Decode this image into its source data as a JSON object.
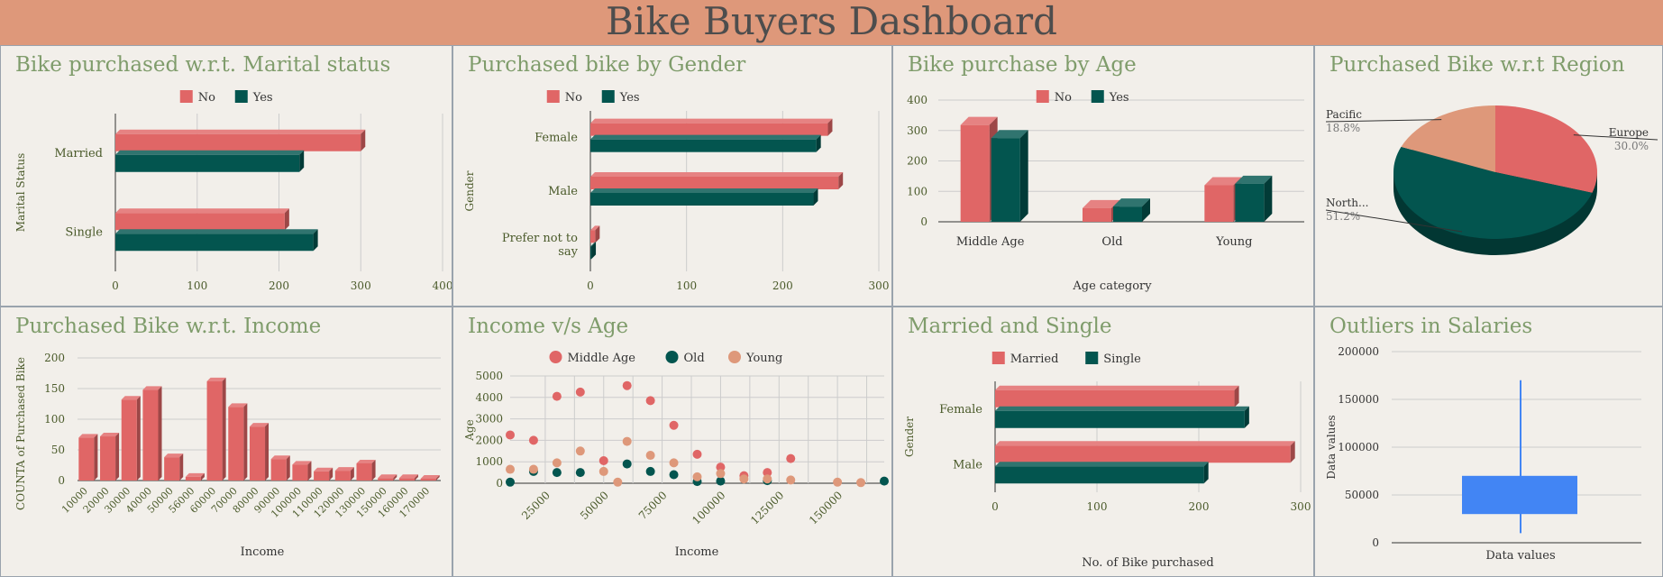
{
  "dashboard_title": "Bike Buyers Dashboard",
  "colors": {
    "red": "#e06666",
    "teal": "#03554f",
    "peach": "#de987a",
    "blue": "#4285f4",
    "title": "#7f9c6b",
    "axis": "#4a5a2a"
  },
  "chart_data": [
    {
      "id": "marital",
      "type": "bar",
      "orientation": "horizontal",
      "title": "Bike purchased w.r.t. Marital status",
      "ylabel": "Marital Status",
      "xlabel": "",
      "categories": [
        "Married",
        "Single"
      ],
      "series": [
        {
          "name": "No",
          "values": [
            300,
            207
          ]
        },
        {
          "name": "Yes",
          "values": [
            225,
            242
          ]
        }
      ],
      "xlim": [
        0,
        400
      ],
      "ticks": [
        0,
        100,
        200,
        300,
        400
      ],
      "tick_labels": [
        "0",
        "100",
        "200",
        "300",
        "400"
      ],
      "legend": "top",
      "grid": true
    },
    {
      "id": "gender",
      "type": "bar",
      "orientation": "horizontal",
      "title": "Purchased bike by Gender",
      "ylabel": "Gender",
      "xlabel": "",
      "categories": [
        "Female",
        "Male",
        "Prefer not to say"
      ],
      "series": [
        {
          "name": "No",
          "values": [
            247,
            258,
            5
          ]
        },
        {
          "name": "Yes",
          "values": [
            235,
            232,
            1
          ]
        }
      ],
      "xlim": [
        0,
        300
      ],
      "ticks": [
        0,
        100,
        200,
        300
      ],
      "tick_labels": [
        "0",
        "100",
        "200",
        "300"
      ],
      "legend": "top",
      "grid": true
    },
    {
      "id": "age",
      "type": "bar",
      "orientation": "vertical",
      "title": "Bike purchase by Age",
      "xlabel": "Age category",
      "ylabel": "",
      "categories": [
        "Middle Age",
        "Old",
        "Young"
      ],
      "series": [
        {
          "name": "No",
          "values": [
            318,
            45,
            120
          ]
        },
        {
          "name": "Yes",
          "values": [
            275,
            50,
            125
          ]
        }
      ],
      "ylim": [
        0,
        400
      ],
      "ticks": [
        0,
        100,
        200,
        300,
        400
      ],
      "tick_labels": [
        "0",
        "100",
        "200",
        "300",
        "400"
      ],
      "legend": "top",
      "grid": true
    },
    {
      "id": "region",
      "type": "pie",
      "title": "Purchased Bike w.r.t Region",
      "slices": [
        {
          "name": "Europe",
          "label": "Europe",
          "pct_label": "30.0%",
          "value": 30.0,
          "color": "#e06666"
        },
        {
          "name": "North America",
          "label": "North...",
          "pct_label": "51.2%",
          "value": 51.2,
          "color": "#03554f"
        },
        {
          "name": "Pacific",
          "label": "Pacific",
          "pct_label": "18.8%",
          "value": 18.8,
          "color": "#de987a"
        }
      ]
    },
    {
      "id": "income",
      "type": "bar",
      "orientation": "vertical",
      "title": "Purchased Bike w.r.t. Income",
      "xlabel": "Income",
      "ylabel": "COUNTA of Purchased Bike",
      "categories": [
        "10000",
        "20000",
        "30000",
        "40000",
        "50000",
        "56000",
        "60000",
        "70000",
        "80000",
        "90000",
        "100000",
        "110000",
        "120000",
        "130000",
        "150000",
        "160000",
        "170000"
      ],
      "series": [
        {
          "name": "COUNTA of Purchased Bike",
          "values": [
            70,
            72,
            132,
            148,
            38,
            6,
            162,
            120,
            88,
            35,
            26,
            15,
            16,
            28,
            4,
            4,
            3
          ]
        }
      ],
      "ylim": [
        0,
        200
      ],
      "ticks": [
        0,
        50,
        100,
        150,
        200
      ],
      "tick_labels": [
        "0",
        "50",
        "100",
        "150",
        "200"
      ],
      "grid": true
    },
    {
      "id": "incomeage",
      "type": "scatter",
      "title": "Income v/s Age",
      "xlabel": "Income",
      "ylabel": "Age",
      "xlim": [
        10000,
        170000
      ],
      "ylim": [
        0,
        5000
      ],
      "xticks": [
        25000,
        50000,
        75000,
        100000,
        125000,
        150000
      ],
      "xtick_labels": [
        "25000",
        "50000",
        "75000",
        "100000",
        "125000",
        "150000"
      ],
      "yticks": [
        0,
        1000,
        2000,
        3000,
        4000,
        5000
      ],
      "ytick_labels": [
        "0",
        "1000",
        "2000",
        "3000",
        "4000",
        "5000"
      ],
      "legend": "top",
      "grid": true,
      "series": [
        {
          "name": "Middle Age",
          "points": [
            [
              10000,
              2250
            ],
            [
              20000,
              2000
            ],
            [
              30000,
              4050
            ],
            [
              40000,
              4250
            ],
            [
              50000,
              1050
            ],
            [
              60000,
              4550
            ],
            [
              70000,
              3850
            ],
            [
              80000,
              2700
            ],
            [
              90000,
              1350
            ],
            [
              100000,
              750
            ],
            [
              110000,
              350
            ],
            [
              120000,
              500
            ],
            [
              130000,
              1150
            ]
          ]
        },
        {
          "name": "Old",
          "points": [
            [
              10000,
              50
            ],
            [
              20000,
              550
            ],
            [
              30000,
              500
            ],
            [
              40000,
              500
            ],
            [
              60000,
              900
            ],
            [
              70000,
              550
            ],
            [
              80000,
              400
            ],
            [
              90000,
              80
            ],
            [
              100000,
              100
            ],
            [
              120000,
              120
            ],
            [
              170000,
              100
            ]
          ]
        },
        {
          "name": "Young",
          "points": [
            [
              10000,
              650
            ],
            [
              20000,
              650
            ],
            [
              30000,
              950
            ],
            [
              40000,
              1500
            ],
            [
              50000,
              550
            ],
            [
              56000,
              50
            ],
            [
              60000,
              1950
            ],
            [
              70000,
              1300
            ],
            [
              80000,
              950
            ],
            [
              90000,
              300
            ],
            [
              100000,
              450
            ],
            [
              110000,
              200
            ],
            [
              120000,
              200
            ],
            [
              130000,
              150
            ],
            [
              150000,
              50
            ],
            [
              160000,
              30
            ]
          ]
        }
      ]
    },
    {
      "id": "married",
      "type": "bar",
      "orientation": "horizontal",
      "title": "Married and Single",
      "ylabel": "Gender",
      "xlabel": "No. of Bike purchased",
      "categories": [
        "Female",
        "Male"
      ],
      "series": [
        {
          "name": "Married",
          "values": [
            235,
            290
          ]
        },
        {
          "name": "Single",
          "values": [
            245,
            205
          ]
        }
      ],
      "xlim": [
        0,
        300
      ],
      "ticks": [
        0,
        100,
        200,
        300
      ],
      "tick_labels": [
        "0",
        "100",
        "200",
        "300"
      ],
      "legend": "top",
      "grid": true
    },
    {
      "id": "outliers",
      "type": "box",
      "title": "Outliers in Salaries",
      "xlabel": "Data values",
      "ylabel": "Data values",
      "category": "Data values",
      "stats": {
        "min": 10000,
        "q1": 30000,
        "median": 60000,
        "q3": 70000,
        "max": 170000
      },
      "ylim": [
        0,
        200000
      ],
      "ticks": [
        0,
        50000,
        100000,
        150000,
        200000
      ],
      "tick_labels": [
        "0",
        "50000",
        "100000",
        "150000",
        "200000"
      ],
      "grid": true
    }
  ]
}
